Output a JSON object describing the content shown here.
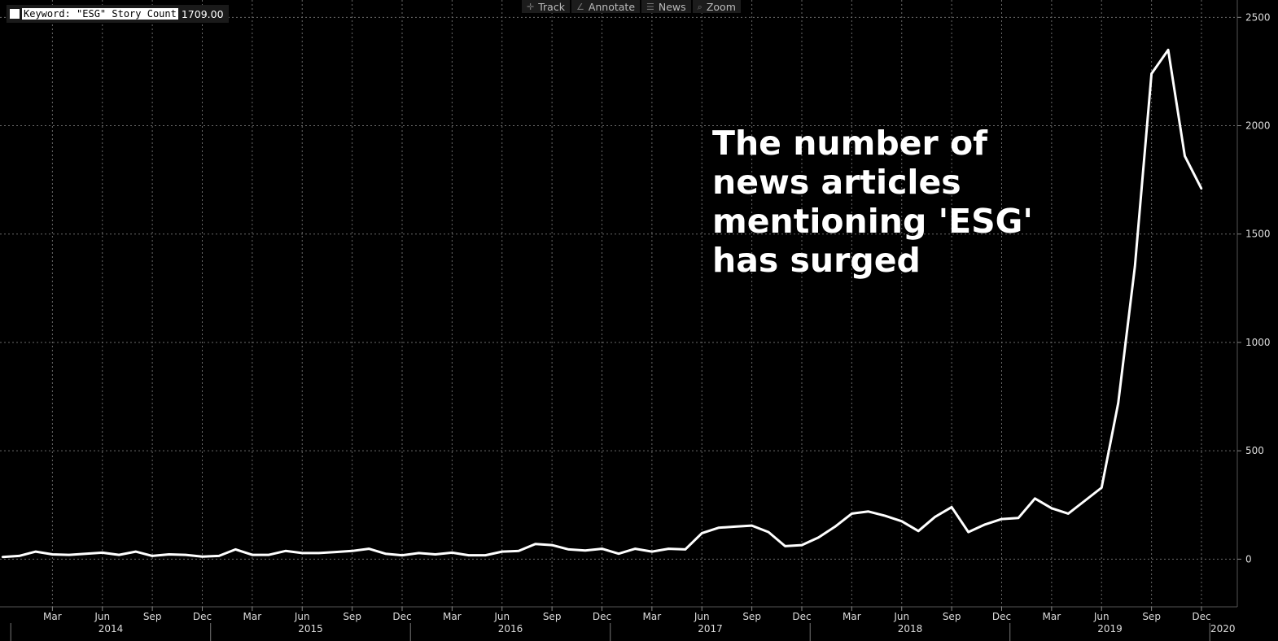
{
  "legend": {
    "label": "Keyword: \"ESG\" Story Count",
    "value": "1709.00",
    "color": "#ffffff"
  },
  "toolbar": [
    {
      "label": "Track",
      "icon": "track-icon"
    },
    {
      "label": "Annotate",
      "icon": "annotate-icon"
    },
    {
      "label": "News",
      "icon": "news-icon"
    },
    {
      "label": "Zoom",
      "icon": "zoom-icon"
    }
  ],
  "annotation": "The number of\nnews articles\nmentioning 'ESG'\nhas surged",
  "chart_data": {
    "type": "line",
    "title": "",
    "xlabel": "",
    "ylabel": "",
    "ylim": [
      -220,
      2580
    ],
    "yticks": [
      0,
      500,
      1000,
      1500,
      2000,
      2500
    ],
    "grid": true,
    "background": "#000000",
    "line_color": "#ffffff",
    "x_start": "2013-12",
    "x_end": "2020-02",
    "month_ticks": [
      {
        "date": "2014-03",
        "label": "Mar"
      },
      {
        "date": "2014-06",
        "label": "Jun"
      },
      {
        "date": "2014-09",
        "label": "Sep"
      },
      {
        "date": "2014-12",
        "label": "Dec"
      },
      {
        "date": "2015-03",
        "label": "Mar"
      },
      {
        "date": "2015-06",
        "label": "Jun"
      },
      {
        "date": "2015-09",
        "label": "Sep"
      },
      {
        "date": "2015-12",
        "label": "Dec"
      },
      {
        "date": "2016-03",
        "label": "Mar"
      },
      {
        "date": "2016-06",
        "label": "Jun"
      },
      {
        "date": "2016-09",
        "label": "Sep"
      },
      {
        "date": "2016-12",
        "label": "Dec"
      },
      {
        "date": "2017-03",
        "label": "Mar"
      },
      {
        "date": "2017-06",
        "label": "Jun"
      },
      {
        "date": "2017-09",
        "label": "Sep"
      },
      {
        "date": "2017-12",
        "label": "Dec"
      },
      {
        "date": "2018-03",
        "label": "Mar"
      },
      {
        "date": "2018-06",
        "label": "Jun"
      },
      {
        "date": "2018-09",
        "label": "Sep"
      },
      {
        "date": "2018-12",
        "label": "Dec"
      },
      {
        "date": "2019-03",
        "label": "Mar"
      },
      {
        "date": "2019-06",
        "label": "Jun"
      },
      {
        "date": "2019-09",
        "label": "Sep"
      },
      {
        "date": "2019-12",
        "label": "Dec"
      }
    ],
    "year_ticks": [
      {
        "date": "2014-07",
        "label": "2014"
      },
      {
        "date": "2015-07",
        "label": "2015"
      },
      {
        "date": "2016-07",
        "label": "2016"
      },
      {
        "date": "2017-07",
        "label": "2017"
      },
      {
        "date": "2018-07",
        "label": "2018"
      },
      {
        "date": "2019-07",
        "label": "2019"
      },
      {
        "date": "2020-01",
        "label": "2020"
      }
    ],
    "year_dividers": [
      "2014-01",
      "2015-01",
      "2016-01",
      "2017-01",
      "2018-01",
      "2019-01",
      "2020-01"
    ],
    "series": [
      {
        "name": "Keyword: \"ESG\" Story Count",
        "points": [
          [
            "2013-12",
            10
          ],
          [
            "2014-01",
            15
          ],
          [
            "2014-02",
            35
          ],
          [
            "2014-03",
            22
          ],
          [
            "2014-04",
            20
          ],
          [
            "2014-05",
            25
          ],
          [
            "2014-06",
            30
          ],
          [
            "2014-07",
            20
          ],
          [
            "2014-08",
            35
          ],
          [
            "2014-09",
            15
          ],
          [
            "2014-10",
            22
          ],
          [
            "2014-11",
            20
          ],
          [
            "2014-12",
            12
          ],
          [
            "2015-01",
            15
          ],
          [
            "2015-02",
            45
          ],
          [
            "2015-03",
            20
          ],
          [
            "2015-04",
            20
          ],
          [
            "2015-05",
            38
          ],
          [
            "2015-06",
            28
          ],
          [
            "2015-07",
            28
          ],
          [
            "2015-08",
            33
          ],
          [
            "2015-09",
            38
          ],
          [
            "2015-10",
            48
          ],
          [
            "2015-11",
            25
          ],
          [
            "2015-12",
            18
          ],
          [
            "2016-01",
            28
          ],
          [
            "2016-02",
            22
          ],
          [
            "2016-03",
            30
          ],
          [
            "2016-04",
            18
          ],
          [
            "2016-05",
            18
          ],
          [
            "2016-06",
            35
          ],
          [
            "2016-07",
            38
          ],
          [
            "2016-08",
            70
          ],
          [
            "2016-09",
            65
          ],
          [
            "2016-10",
            45
          ],
          [
            "2016-11",
            40
          ],
          [
            "2016-12",
            48
          ],
          [
            "2017-01",
            25
          ],
          [
            "2017-02",
            48
          ],
          [
            "2017-03",
            35
          ],
          [
            "2017-04",
            48
          ],
          [
            "2017-05",
            45
          ],
          [
            "2017-06",
            120
          ],
          [
            "2017-07",
            145
          ],
          [
            "2017-08",
            150
          ],
          [
            "2017-09",
            155
          ],
          [
            "2017-10",
            125
          ],
          [
            "2017-11",
            60
          ],
          [
            "2017-12",
            65
          ],
          [
            "2018-01",
            100
          ],
          [
            "2018-02",
            150
          ],
          [
            "2018-03",
            210
          ],
          [
            "2018-04",
            220
          ],
          [
            "2018-05",
            200
          ],
          [
            "2018-06",
            175
          ],
          [
            "2018-07",
            130
          ],
          [
            "2018-08",
            195
          ],
          [
            "2018-09",
            240
          ],
          [
            "2018-10",
            125
          ],
          [
            "2018-11",
            160
          ],
          [
            "2018-12",
            185
          ],
          [
            "2019-01",
            190
          ],
          [
            "2019-02",
            280
          ],
          [
            "2019-03",
            235
          ],
          [
            "2019-04",
            210
          ],
          [
            "2019-05",
            270
          ],
          [
            "2019-06",
            330
          ],
          [
            "2019-07",
            720
          ],
          [
            "2019-08",
            1350
          ],
          [
            "2019-09",
            2240
          ],
          [
            "2019-10",
            2350
          ],
          [
            "2019-11",
            1860
          ],
          [
            "2019-12",
            1709
          ]
        ]
      }
    ]
  }
}
